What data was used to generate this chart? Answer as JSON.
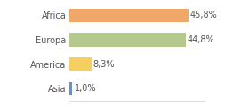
{
  "categories": [
    "Africa",
    "Europa",
    "America",
    "Asia"
  ],
  "values": [
    45.8,
    44.8,
    8.3,
    1.0
  ],
  "labels": [
    "45,8%",
    "44,8%",
    "8,3%",
    "1,0%"
  ],
  "bar_colors": [
    "#f0a868",
    "#b5c98e",
    "#f5d060",
    "#6f8fc0"
  ],
  "background_color": "#ffffff",
  "xlim": [
    0,
    52
  ],
  "label_fontsize": 7,
  "tick_fontsize": 7,
  "bar_height": 0.55
}
